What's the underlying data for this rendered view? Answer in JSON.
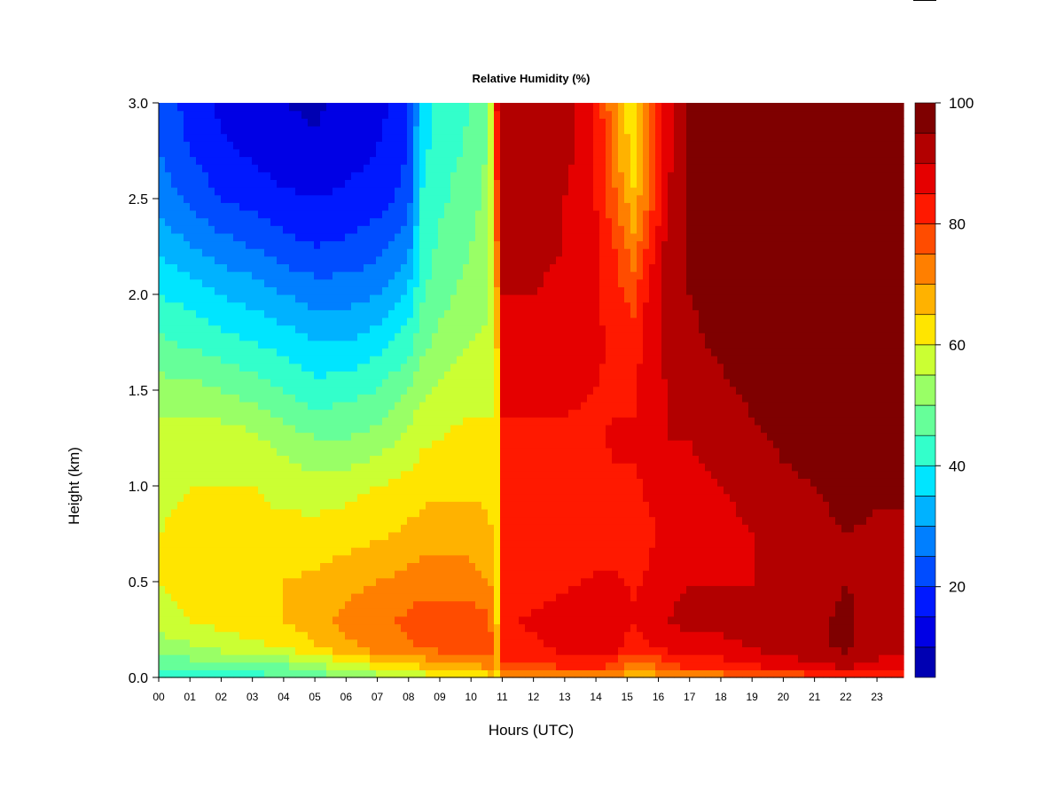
{
  "chart_data": {
    "type": "heatmap",
    "title": "Relative Humidity (%)",
    "xlabel": "Hours (UTC)",
    "ylabel": "Height (km)",
    "x_ticks": [
      "00",
      "01",
      "02",
      "03",
      "04",
      "05",
      "06",
      "07",
      "08",
      "09",
      "10",
      "11",
      "12",
      "13",
      "14",
      "15",
      "16",
      "17",
      "18",
      "19",
      "20",
      "21",
      "22",
      "23"
    ],
    "xlim": [
      0,
      23.85
    ],
    "y_ticks": [
      "0.0",
      "0.5",
      "1.0",
      "1.5",
      "2.0",
      "2.5",
      "3.0"
    ],
    "ylim": [
      0,
      3.0
    ],
    "colorbar": {
      "ticks": [
        "20",
        "40",
        "60",
        "80",
        "100"
      ],
      "range": [
        5,
        100
      ],
      "levels": [
        5,
        10,
        15,
        20,
        25,
        30,
        35,
        40,
        45,
        50,
        55,
        60,
        65,
        70,
        75,
        80,
        85,
        90,
        95,
        100
      ],
      "colors": [
        "#00007f",
        "#0000b2",
        "#0000e5",
        "#0019ff",
        "#004cff",
        "#007fff",
        "#00b2ff",
        "#00e5ff",
        "#33ffcb",
        "#66ff99",
        "#99ff66",
        "#cbff33",
        "#ffe500",
        "#ffb200",
        "#ff7f00",
        "#ff4c00",
        "#ff1900",
        "#e50000",
        "#b20000",
        "#7f0000"
      ]
    },
    "heights_km": [
      0.0,
      0.05,
      0.15,
      0.3,
      0.5,
      0.75,
      1.0,
      1.25,
      1.5,
      1.75,
      2.0,
      2.25,
      2.5,
      2.75,
      3.0
    ],
    "rh_profiles": [
      {
        "hour": 0.0,
        "rh": [
          42,
          45,
          52,
          58,
          60,
          60,
          59,
          57,
          52,
          46,
          40,
          34,
          28,
          25,
          23
        ]
      },
      {
        "hour": 1.0,
        "rh": [
          42,
          46,
          54,
          60,
          62,
          61,
          60,
          58,
          52,
          44,
          38,
          30,
          24,
          20,
          18
        ]
      },
      {
        "hour": 2.0,
        "rh": [
          42,
          46,
          56,
          62,
          63,
          62,
          60,
          58,
          50,
          42,
          35,
          27,
          20,
          16,
          14
        ]
      },
      {
        "hour": 3.0,
        "rh": [
          43,
          47,
          58,
          64,
          64,
          62,
          60,
          56,
          48,
          40,
          33,
          25,
          18,
          14,
          12
        ]
      },
      {
        "hour": 4.0,
        "rh": [
          44,
          48,
          60,
          65,
          65,
          62,
          58,
          53,
          45,
          38,
          30,
          22,
          16,
          12,
          10
        ]
      },
      {
        "hour": 5.0,
        "rh": [
          46,
          52,
          64,
          68,
          66,
          62,
          57,
          50,
          42,
          35,
          28,
          20,
          15,
          11,
          9
        ]
      },
      {
        "hour": 6.0,
        "rh": [
          50,
          56,
          68,
          72,
          68,
          63,
          58,
          50,
          43,
          35,
          28,
          21,
          16,
          13,
          11
        ]
      },
      {
        "hour": 7.0,
        "rh": [
          52,
          60,
          72,
          74,
          70,
          64,
          60,
          52,
          45,
          38,
          30,
          23,
          18,
          15,
          13
        ]
      },
      {
        "hour": 8.0,
        "rh": [
          55,
          62,
          74,
          76,
          72,
          66,
          62,
          56,
          50,
          43,
          36,
          28,
          22,
          20,
          18
        ]
      },
      {
        "hour": 8.4,
        "rh": [
          56,
          64,
          75,
          77,
          73,
          67,
          63,
          59,
          54,
          48,
          44,
          42,
          40,
          38,
          36
        ]
      },
      {
        "hour": 9.0,
        "rh": [
          58,
          66,
          76,
          77,
          72,
          68,
          64,
          60,
          56,
          52,
          48,
          46,
          44,
          43,
          42
        ]
      },
      {
        "hour": 10.0,
        "rh": [
          60,
          68,
          78,
          78,
          72,
          68,
          64,
          62,
          58,
          55,
          52,
          50,
          48,
          46,
          45
        ]
      },
      {
        "hour": 10.6,
        "rh": [
          62,
          70,
          78,
          76,
          70,
          66,
          63,
          61,
          58,
          56,
          54,
          53,
          52,
          51,
          50
        ]
      },
      {
        "hour": 10.85,
        "rh": [
          64,
          66,
          66,
          64,
          63,
          62,
          62,
          63,
          64,
          66,
          70,
          76,
          80,
          85,
          88
        ]
      },
      {
        "hour": 11.0,
        "rh": [
          68,
          78,
          84,
          84,
          80,
          80,
          82,
          84,
          86,
          88,
          90,
          92,
          93,
          94,
          94
        ]
      },
      {
        "hour": 12.0,
        "rh": [
          68,
          78,
          84,
          86,
          82,
          80,
          82,
          84,
          86,
          88,
          90,
          92,
          93,
          94,
          95
        ]
      },
      {
        "hour": 13.0,
        "rh": [
          68,
          80,
          86,
          88,
          84,
          80,
          82,
          84,
          86,
          87,
          88,
          90,
          90,
          92,
          92
        ]
      },
      {
        "hour": 14.0,
        "rh": [
          68,
          80,
          87,
          90,
          86,
          82,
          83,
          84,
          85,
          86,
          86,
          86,
          85,
          85,
          85
        ]
      },
      {
        "hour": 14.6,
        "rh": [
          68,
          78,
          86,
          88,
          86,
          82,
          84,
          86,
          84,
          84,
          82,
          80,
          76,
          72,
          70
        ]
      },
      {
        "hour": 15.2,
        "rh": [
          64,
          70,
          82,
          86,
          84,
          82,
          84,
          86,
          84,
          82,
          78,
          72,
          66,
          62,
          62
        ]
      },
      {
        "hour": 15.7,
        "rh": [
          66,
          72,
          84,
          88,
          86,
          84,
          86,
          87,
          88,
          88,
          86,
          82,
          76,
          74,
          74
        ]
      },
      {
        "hour": 16.3,
        "rh": [
          68,
          78,
          86,
          90,
          88,
          86,
          88,
          90,
          90,
          92,
          92,
          92,
          90,
          88,
          88
        ]
      },
      {
        "hour": 17.0,
        "rh": [
          68,
          80,
          88,
          92,
          90,
          88,
          89,
          90,
          92,
          94,
          95,
          96,
          97,
          97,
          97
        ]
      },
      {
        "hour": 18.0,
        "rh": [
          70,
          82,
          88,
          92,
          90,
          88,
          90,
          92,
          94,
          96,
          97,
          98,
          98,
          98,
          98
        ]
      },
      {
        "hour": 19.0,
        "rh": [
          72,
          84,
          90,
          92,
          90,
          90,
          92,
          94,
          96,
          98,
          99,
          99,
          99,
          99,
          99
        ]
      },
      {
        "hour": 20.0,
        "rh": [
          74,
          86,
          92,
          93,
          92,
          92,
          94,
          96,
          98,
          99,
          99,
          99,
          99,
          99,
          99
        ]
      },
      {
        "hour": 21.0,
        "rh": [
          76,
          88,
          94,
          94,
          93,
          93,
          95,
          97,
          99,
          99,
          99,
          99,
          99,
          99,
          99
        ]
      },
      {
        "hour": 22.0,
        "rh": [
          80,
          90,
          96,
          96,
          95,
          95,
          97,
          99,
          99,
          99,
          99,
          99,
          99,
          99,
          99
        ]
      },
      {
        "hour": 23.0,
        "rh": [
          82,
          88,
          92,
          93,
          93,
          94,
          96,
          98,
          99,
          99,
          99,
          99,
          99,
          99,
          99
        ]
      },
      {
        "hour": 23.85,
        "rh": [
          82,
          88,
          92,
          93,
          93,
          94,
          96,
          98,
          99,
          99,
          99,
          99,
          99,
          99,
          99
        ]
      }
    ]
  }
}
